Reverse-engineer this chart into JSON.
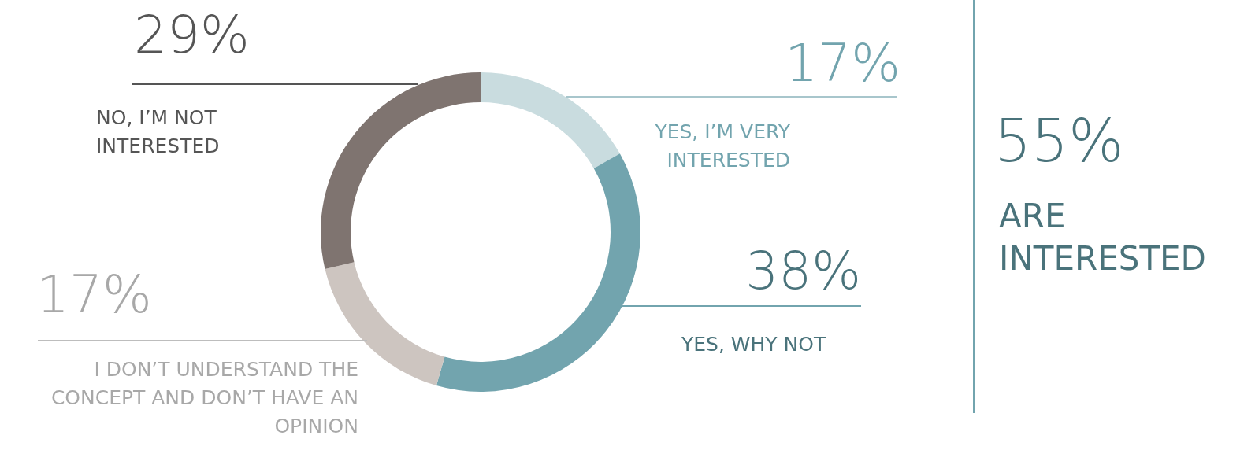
{
  "chart_data": {
    "type": "donut",
    "categories": [
      "YES, I’M VERY INTERESTED",
      "YES, WHY NOT",
      "I DON’T UNDERSTAND THE CONCEPT AND DON’T HAVE AN OPINION",
      "NO, I’M NOT INTERESTED"
    ],
    "values": [
      17,
      38,
      17,
      29
    ],
    "value_labels": [
      "17%",
      "38%",
      "17%",
      "29%"
    ],
    "colors": [
      "#c9dcdf",
      "#72a4ae",
      "#cdc5c0",
      "#7f7470"
    ],
    "annotations": [
      "55%",
      "ARE INTERESTED"
    ]
  }
}
